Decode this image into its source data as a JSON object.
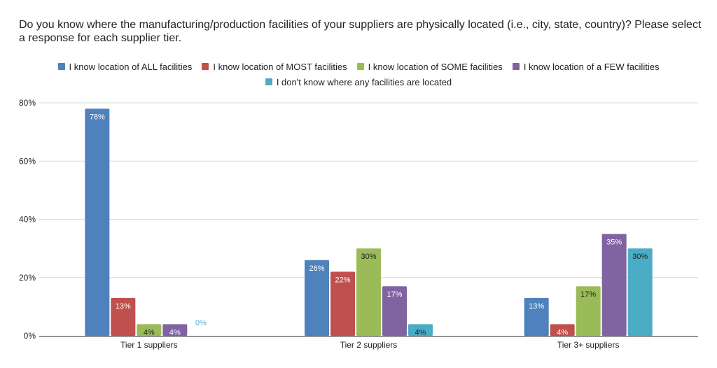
{
  "chart_data": {
    "type": "bar",
    "title": "Do you know where the manufacturing/production facilities of your suppliers are physically located (i.e., city, state, country)? Please select a response for each supplier tier.",
    "categories": [
      "Tier 1 suppliers",
      "Tier 2 suppliers",
      "Tier 3+ suppliers"
    ],
    "series": [
      {
        "name": "I know location of ALL facilities",
        "color": "#4f81bd",
        "label_color": "#ffffff",
        "values": [
          78,
          26,
          13
        ]
      },
      {
        "name": "I know location of MOST facilities",
        "color": "#c0504d",
        "label_color": "#ffffff",
        "values": [
          13,
          22,
          4
        ]
      },
      {
        "name": "I know location of SOME facilities",
        "color": "#9bbb59",
        "label_color": "#222222",
        "values": [
          4,
          30,
          17
        ]
      },
      {
        "name": "I know location of a FEW facilities",
        "color": "#8064a2",
        "label_color": "#ffffff",
        "values": [
          4,
          17,
          35
        ]
      },
      {
        "name": "I don't know where any facilities are located",
        "color": "#4bacc6",
        "label_color": "#222222",
        "values": [
          0,
          4,
          30
        ]
      }
    ],
    "y_ticks": [
      "0%",
      "20%",
      "40%",
      "60%",
      "80%"
    ],
    "ylim": [
      0,
      80
    ],
    "value_suffix": "%",
    "grid": true,
    "legend_position": "top-center",
    "xlabel": "",
    "ylabel": ""
  }
}
